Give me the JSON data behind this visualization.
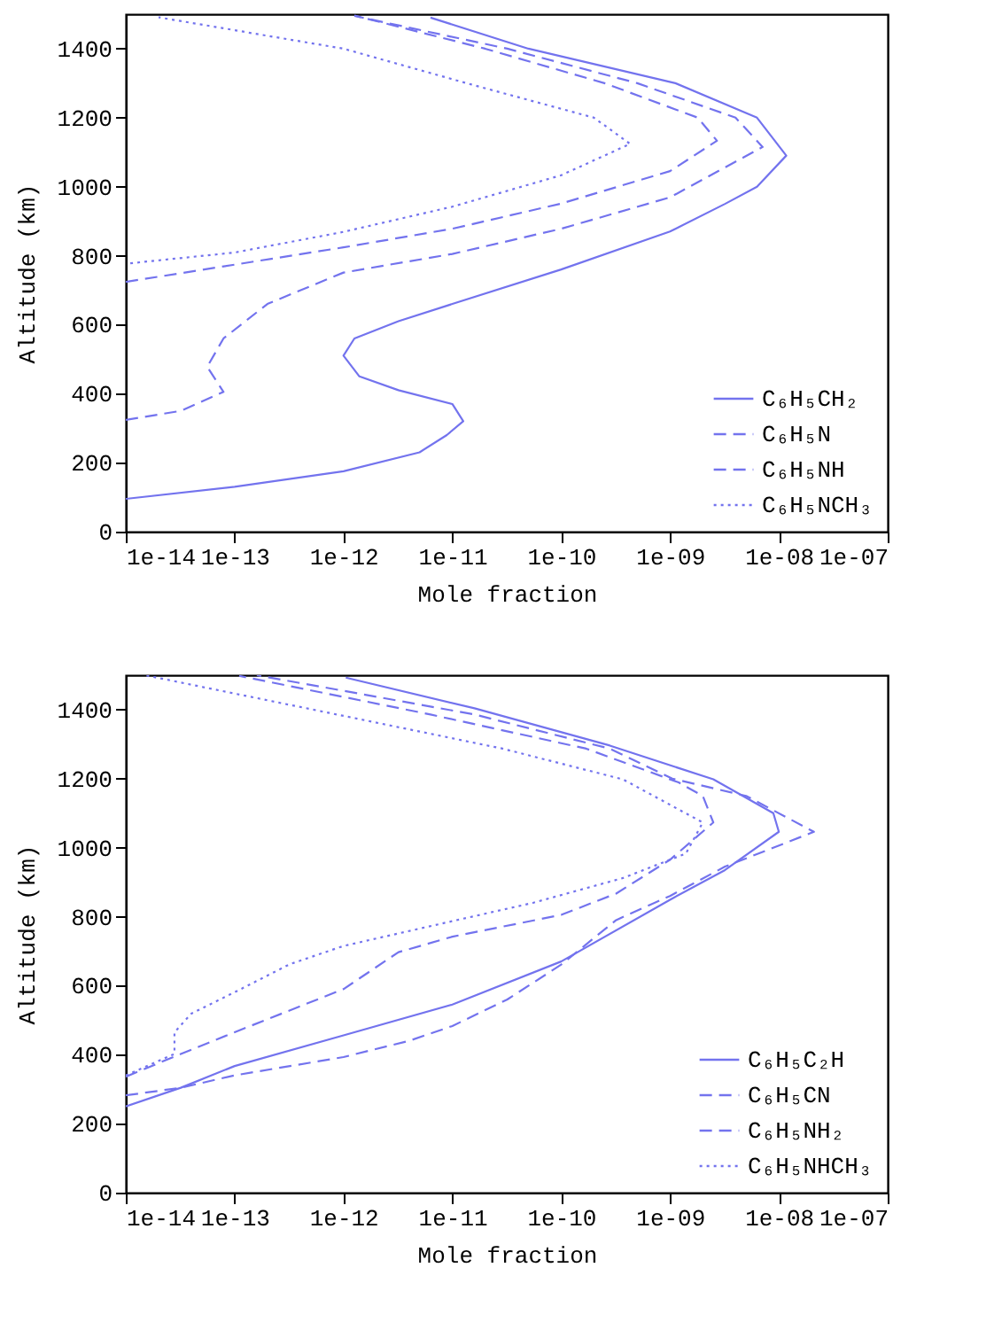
{
  "chart_data": [
    {
      "type": "line",
      "xlabel": "Mole fraction",
      "ylabel": "Altitude (km)",
      "log": "x",
      "legend": "bottom right",
      "xlim": [
        1e-14,
        1e-07
      ],
      "xticks": [
        {
          "value": 1e-14,
          "label": "1e-14"
        },
        {
          "value": 1e-13,
          "label": "1e-13"
        },
        {
          "value": 1e-12,
          "label": "1e-12"
        },
        {
          "value": 1e-11,
          "label": "1e-11"
        },
        {
          "value": 1e-10,
          "label": "1e-10"
        },
        {
          "value": 1e-09,
          "label": "1e-09"
        },
        {
          "value": 1e-08,
          "label": "1e-08"
        },
        {
          "value": 1e-07,
          "label": "1e-07"
        }
      ],
      "ylim": [
        0,
        1500
      ],
      "yticks": [
        0,
        200,
        400,
        600,
        800,
        1000,
        1200,
        1400
      ],
      "series": [
        {
          "name": "C₆H₅CH₂",
          "color": "#7373ee",
          "line_style": "solid",
          "x": [
            1e-14,
            1e-13,
            1e-12,
            5e-12,
            8.9e-12,
            1.26e-11,
            1e-11,
            3.2e-12,
            1.4e-12,
            1e-12,
            1.26e-12,
            3.2e-12,
            1e-11,
            1e-10,
            1e-09,
            3.2e-09,
            6.3e-09,
            1.17e-08,
            6.3e-09,
            1.12e-09,
            5e-11,
            6.3e-12
          ],
          "values": [
            95,
            130,
            175,
            230,
            280,
            320,
            370,
            410,
            450,
            510,
            560,
            610,
            660,
            760,
            870,
            950,
            1000,
            1090,
            1200,
            1300,
            1400,
            1490
          ]
        },
        {
          "name": "C₆H₅N",
          "color": "#7373ee",
          "line_style": "dashed",
          "x": [
            1e-14,
            1e-12,
            1e-11,
            1e-10,
            1e-09,
            2.7e-09,
            1.8e-09,
            2.5e-10,
            2e-11,
            1.26e-12
          ],
          "values": [
            724,
            824,
            878,
            951,
            1045,
            1133,
            1200,
            1300,
            1400,
            1496
          ]
        },
        {
          "name": "C₆H₅NH",
          "color": "#7373ee",
          "line_style": "dashed",
          "x": [
            1e-14,
            3.2e-14,
            7.9e-14,
            5.6e-14,
            7.9e-14,
            2e-13,
            1e-12,
            1e-11,
            1e-10,
            1e-09,
            7.1e-09,
            4e-09,
            5e-10,
            3.2e-11,
            1.26e-12
          ],
          "values": [
            324,
            350,
            405,
            478,
            560,
            660,
            751,
            805,
            878,
            969,
            1115,
            1200,
            1300,
            1400,
            1495
          ]
        },
        {
          "name": "C₆H₅NCH₃",
          "color": "#7373ee",
          "line_style": "dotted",
          "x": [
            1.1e-14,
            1e-13,
            1e-12,
            1e-11,
            1e-10,
            4.3e-10,
            2e-10,
            1.5e-11,
            1e-12,
            2e-14
          ],
          "values": [
            778,
            809,
            869,
            942,
            1033,
            1124,
            1200,
            1296,
            1400,
            1491
          ]
        }
      ]
    },
    {
      "type": "line",
      "xlabel": "Mole fraction",
      "ylabel": "Altitude (km)",
      "log": "x",
      "legend": "bottom right",
      "xlim": [
        1e-14,
        1e-07
      ],
      "xticks": [
        {
          "value": 1e-14,
          "label": "1e-14"
        },
        {
          "value": 1e-13,
          "label": "1e-13"
        },
        {
          "value": 1e-12,
          "label": "1e-12"
        },
        {
          "value": 1e-11,
          "label": "1e-11"
        },
        {
          "value": 1e-10,
          "label": "1e-10"
        },
        {
          "value": 1e-09,
          "label": "1e-09"
        },
        {
          "value": 1e-08,
          "label": "1e-08"
        },
        {
          "value": 1e-07,
          "label": "1e-07"
        }
      ],
      "ylim": [
        0,
        1500
      ],
      "yticks": [
        0,
        200,
        400,
        600,
        800,
        1000,
        1200,
        1400
      ],
      "series": [
        {
          "name": "C₆H₅C₂H",
          "color": "#7373ee",
          "line_style": "solid",
          "x": [
            1e-14,
            3.2e-14,
            1e-13,
            1e-12,
            1e-11,
            1e-10,
            1e-09,
            3.2e-09,
            1e-08,
            8.9e-09,
            2.5e-09,
            2.8e-10,
            1.6e-11,
            1.05e-12
          ],
          "values": [
            250,
            304,
            367,
            456,
            545,
            670,
            849,
            935,
            1046,
            1100,
            1198,
            1296,
            1404,
            1493
          ]
        },
        {
          "name": "C₆H₅CN",
          "color": "#7373ee",
          "line_style": "dashed",
          "x": [
            1e-14,
            3.2e-14,
            1e-13,
            1e-12,
            3.2e-12,
            1e-11,
            1e-10,
            3.2e-10,
            1e-09,
            2.5e-09,
            2e-09,
            1.2e-09,
            1.7e-10,
            6.3e-12,
            1.1e-13
          ],
          "values": [
            336,
            402,
            465,
            590,
            697,
            742,
            805,
            867,
            965,
            1073,
            1150,
            1189,
            1287,
            1386,
            1498
          ]
        },
        {
          "name": "C₆H₅NH₂",
          "color": "#7373ee",
          "line_style": "dashed",
          "x": [
            1e-14,
            3.2e-14,
            1e-13,
            1e-12,
            4e-12,
            1e-11,
            3.2e-11,
            1e-10,
            3.2e-10,
            1e-09,
            3.2e-09,
            2.1e-08,
            5e-09,
            1.05e-09,
            2.8e-10,
            1.6e-11,
            1.6e-13
          ],
          "values": [
            282,
            304,
            340,
            393,
            440,
            483,
            560,
            661,
            790,
            860,
            945,
            1046,
            1150,
            1200,
            1287,
            1386,
            1500
          ]
        },
        {
          "name": "C₆H₅NHCH₃",
          "color": "#7373ee",
          "line_style": "dotted",
          "x": [
            1e-14,
            2.8e-14,
            2.8e-14,
            4e-14,
            1e-13,
            3.2e-13,
            1e-12,
            1e-11,
            5.5e-11,
            3.7e-10,
            1.4e-09,
            2e-09,
            3.7e-10,
            2.9e-11,
            1.2e-12,
            1.5e-14
          ],
          "values": [
            340,
            402,
            465,
            519,
            581,
            662,
            715,
            787,
            840,
            912,
            983,
            1073,
            1198,
            1287,
            1377,
            1500
          ]
        }
      ]
    }
  ]
}
